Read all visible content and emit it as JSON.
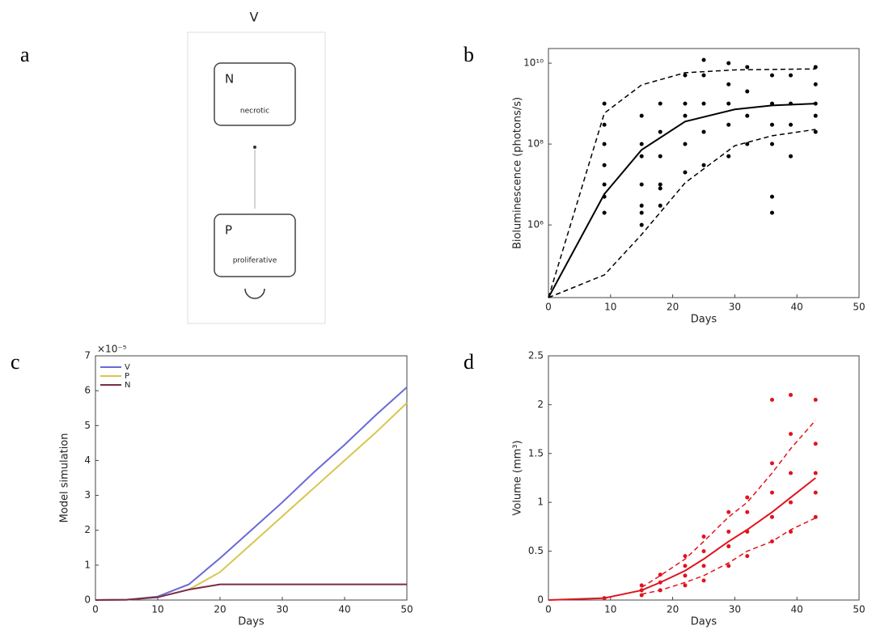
{
  "diagram": {
    "label": "a",
    "top": "V",
    "nodes": [
      {
        "label": "N",
        "text": "necrotic"
      },
      {
        "label": "P",
        "text": "proliferative"
      }
    ]
  },
  "chart_data": [
    {
      "type": "line",
      "label": "b",
      "xlabel": "Days",
      "ylabel": "Bioluminescence (photons/s)",
      "log_y": true,
      "xlim": [
        0,
        50
      ],
      "xticks": [
        0,
        10,
        20,
        30,
        40,
        50
      ],
      "ylim": [
        16000,
        23000000000
      ],
      "yticks": [
        {
          "value": 1000000,
          "label": "10⁶"
        },
        {
          "value": 100000000,
          "label": "10⁸"
        },
        {
          "value": 10000000000,
          "label": "10¹⁰"
        }
      ],
      "series": [
        {
          "style": "solid",
          "color": "#000000",
          "x": [
            0,
            9,
            15,
            22,
            30,
            36,
            43
          ],
          "values": [
            16000,
            5800000,
            72000000,
            360000000,
            720000000,
            900000000,
            1000000000
          ]
        },
        {
          "style": "dashed",
          "color": "#000000",
          "x": [
            0,
            9,
            15,
            22,
            30,
            36,
            43
          ],
          "values": [
            16000,
            580000000,
            2900000000,
            5800000000,
            6800000000,
            7000000000,
            7200000000
          ]
        },
        {
          "style": "dashed",
          "color": "#000000",
          "x": [
            0,
            9,
            15,
            22,
            30,
            36,
            43
          ],
          "values": [
            16000,
            58000,
            580000,
            11000000,
            91000000,
            160000000,
            230000000
          ]
        },
        {
          "style": "points",
          "color": "#000000",
          "x": [
            9,
            9,
            9,
            9,
            9,
            9,
            9,
            15,
            15,
            15,
            15,
            15,
            15,
            15,
            18,
            18,
            18,
            18,
            18,
            18,
            22,
            22,
            22,
            22,
            22,
            25,
            25,
            25,
            25,
            25,
            29,
            29,
            29,
            29,
            29,
            32,
            32,
            32,
            32,
            36,
            36,
            36,
            36,
            36,
            36,
            39,
            39,
            39,
            39,
            43,
            43,
            43,
            43,
            43
          ],
          "values": [
            2000000,
            5000000,
            10000000,
            30000000,
            100000000,
            300000000,
            1000000000,
            1000000,
            2000000,
            3000000,
            10000000,
            50000000,
            100000000,
            500000000,
            3000000,
            8000000,
            10000000,
            50000000,
            200000000,
            1000000000,
            20000000,
            100000000,
            500000000,
            1000000000,
            5000000000,
            30000000,
            200000000,
            1000000000,
            5000000000,
            12000000000,
            50000000,
            300000000,
            1000000000,
            3000000000,
            10000000000,
            100000000,
            500000000,
            2000000000,
            8000000000,
            2000000,
            5000000,
            100000000,
            300000000,
            1000000000,
            5000000000,
            50000000,
            300000000,
            1000000000,
            5000000000,
            200000000,
            500000000,
            1000000000,
            3000000000,
            8000000000
          ]
        }
      ]
    },
    {
      "type": "line",
      "label": "c",
      "xlabel": "Days",
      "ylabel": "Model simulation",
      "y_multiplier": "×10⁻⁵",
      "xlim": [
        0,
        50
      ],
      "xticks": [
        0,
        10,
        20,
        30,
        40,
        50
      ],
      "ylim": [
        0,
        7
      ],
      "yticks": [
        0,
        1,
        2,
        3,
        4,
        5,
        6,
        7
      ],
      "series": [
        {
          "name": "V",
          "style": "solid",
          "color": "#6a6ad6",
          "x": [
            0,
            5,
            10,
            15,
            20,
            25,
            30,
            35,
            40,
            45,
            50
          ],
          "values": [
            0,
            0.01,
            0.1,
            0.45,
            1.2,
            2.0,
            2.8,
            3.65,
            4.45,
            5.3,
            6.1
          ]
        },
        {
          "name": "P",
          "style": "solid",
          "color": "#d8c64e",
          "x": [
            0,
            5,
            10,
            15,
            20,
            25,
            30,
            35,
            40,
            45,
            50
          ],
          "values": [
            0,
            0.01,
            0.08,
            0.3,
            0.8,
            1.6,
            2.4,
            3.2,
            4.0,
            4.8,
            5.65
          ]
        },
        {
          "name": "N",
          "style": "solid",
          "color": "#7a2a4a",
          "x": [
            0,
            5,
            10,
            15,
            20,
            25,
            30,
            35,
            40,
            45,
            50
          ],
          "values": [
            0,
            0.01,
            0.08,
            0.3,
            0.45,
            0.45,
            0.45,
            0.45,
            0.45,
            0.45,
            0.45
          ]
        }
      ]
    },
    {
      "type": "line",
      "label": "d",
      "xlabel": "Days",
      "ylabel": "Volume (mm³)",
      "xlim": [
        0,
        50
      ],
      "xticks": [
        0,
        10,
        20,
        30,
        40,
        50
      ],
      "ylim": [
        0,
        2.5
      ],
      "yticks": [
        0,
        0.5,
        1,
        1.5,
        2,
        2.5
      ],
      "series": [
        {
          "style": "solid",
          "color": "#e0141e",
          "x": [
            0,
            9,
            15,
            18,
            22,
            25,
            29,
            32,
            36,
            39,
            43
          ],
          "values": [
            0,
            0.02,
            0.1,
            0.18,
            0.3,
            0.42,
            0.6,
            0.72,
            0.9,
            1.05,
            1.25
          ]
        },
        {
          "style": "dashed",
          "color": "#e0141e",
          "x": [
            15,
            18,
            22,
            25,
            29,
            32,
            36,
            39,
            43
          ],
          "values": [
            0.13,
            0.25,
            0.42,
            0.6,
            0.85,
            1.0,
            1.3,
            1.55,
            1.84
          ]
        },
        {
          "style": "dashed",
          "color": "#e0141e",
          "x": [
            15,
            18,
            22,
            25,
            29,
            32,
            36,
            39,
            43
          ],
          "values": [
            0.06,
            0.1,
            0.18,
            0.25,
            0.38,
            0.5,
            0.6,
            0.72,
            0.84
          ]
        },
        {
          "style": "points",
          "color": "#e0141e",
          "x": [
            9,
            15,
            15,
            15,
            18,
            18,
            18,
            22,
            22,
            22,
            22,
            25,
            25,
            25,
            25,
            29,
            29,
            29,
            29,
            32,
            32,
            32,
            32,
            36,
            36,
            36,
            36,
            36,
            39,
            39,
            39,
            39,
            39,
            43,
            43,
            43,
            43,
            43
          ],
          "values": [
            0.02,
            0.05,
            0.1,
            0.15,
            0.1,
            0.18,
            0.26,
            0.15,
            0.25,
            0.35,
            0.45,
            0.2,
            0.35,
            0.5,
            0.65,
            0.35,
            0.55,
            0.7,
            0.9,
            0.45,
            0.7,
            0.9,
            1.05,
            0.6,
            0.85,
            1.1,
            1.4,
            2.05,
            0.7,
            1.0,
            1.3,
            1.7,
            2.1,
            0.85,
            1.1,
            1.3,
            1.6,
            2.05
          ]
        }
      ]
    }
  ]
}
